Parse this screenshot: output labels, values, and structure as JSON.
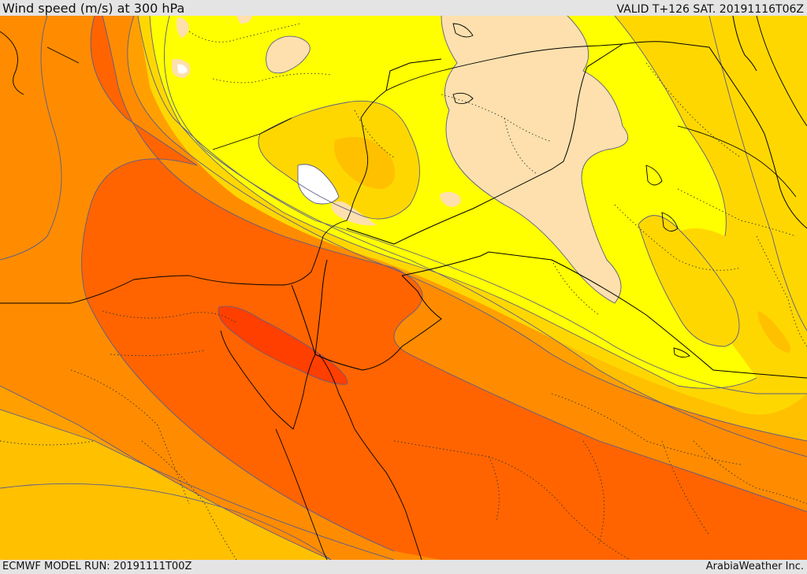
{
  "header": {
    "title": "Wind speed (m/s) at 300 hPa",
    "valid": "VALID T+126 SAT. 20191116T06Z"
  },
  "footer": {
    "model_run": "ECMWF MODEL RUN: 20191111T00Z",
    "credit": "ArabiaWeather Inc."
  },
  "map": {
    "field": "wind speed",
    "level": "300 hPa",
    "palette": {
      "white": "#ffffff",
      "tan": "#fde0ad",
      "yellow": "#ffff00",
      "light_yellow": "#fff080",
      "yellow_orange": "#ffd700",
      "gold": "#ffc000",
      "orange": "#ffa000",
      "dark_orange": "#ff8c00",
      "red_orange": "#ff6400",
      "red": "#ff3f00"
    },
    "line_colors": {
      "contour": "#5c5c8a",
      "country_border": "#000000",
      "province_border": "#333333"
    }
  }
}
